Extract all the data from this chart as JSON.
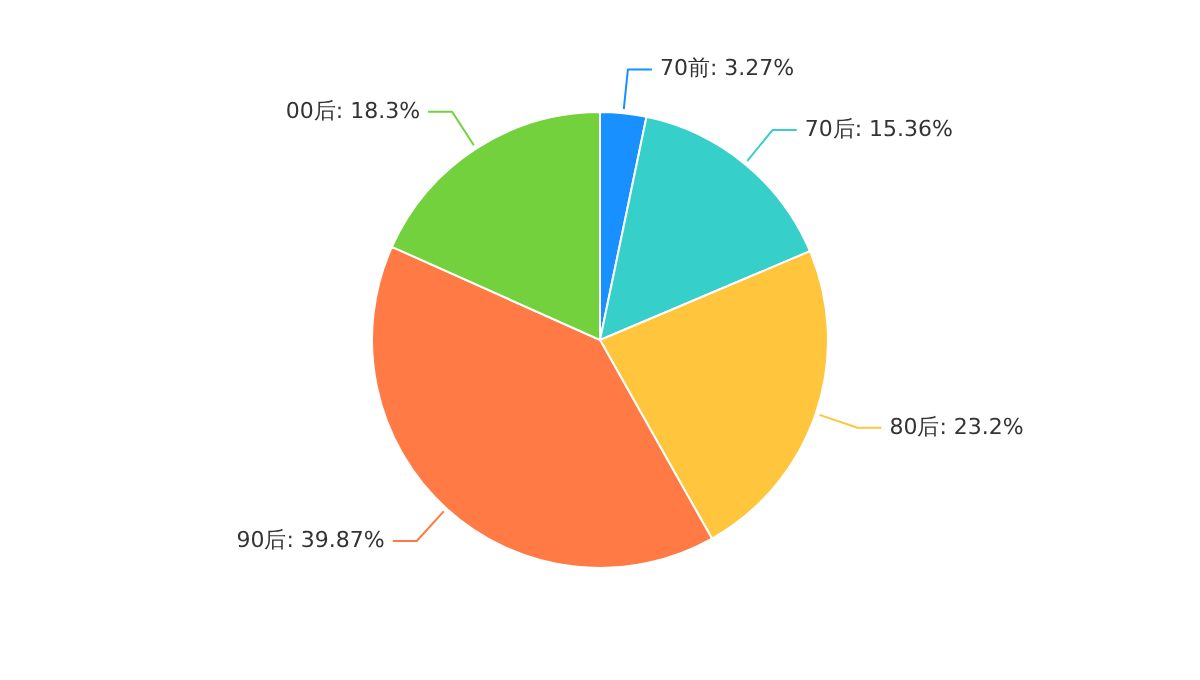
{
  "chart_data": {
    "type": "pie",
    "categories": [
      "70前",
      "70后",
      "80后",
      "90后",
      "00后"
    ],
    "values": [
      3.27,
      15.36,
      23.2,
      39.87,
      18.3
    ],
    "colors": [
      "#1890ff",
      "#36cfc9",
      "#ffc53d",
      "#ff7a45",
      "#73d13d"
    ],
    "value_labels": [
      "3.27%",
      "15.36%",
      "23.2%",
      "39.87%",
      "18.3%"
    ]
  }
}
